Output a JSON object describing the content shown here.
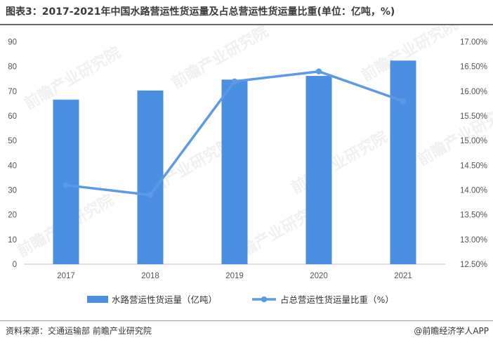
{
  "header": {
    "title": "图表3：2017-2021年中国水路营运性货运量及占总营运性货运量比重(单位：亿吨，%)"
  },
  "footer": {
    "source": "资料来源：交通运输部 前瞻产业研究院",
    "brand": "@前瞻经济学人APP"
  },
  "watermark": {
    "text": "前瞻产业研究院"
  },
  "colors": {
    "bar": "#4a8fe2",
    "line": "#5b9ae6",
    "axis": "#bfbfbf"
  },
  "chart_data": {
    "type": "bar",
    "categories": [
      "2017",
      "2018",
      "2019",
      "2020",
      "2021"
    ],
    "series": [
      {
        "name": "水路营运性货运量（亿吨）",
        "type": "bar",
        "axis": "left",
        "values": [
          66.6,
          70.3,
          74.7,
          76.2,
          82.4
        ]
      },
      {
        "name": "占总营运性货运量比重（%）",
        "type": "line",
        "axis": "right",
        "values": [
          14.1,
          13.9,
          16.2,
          16.4,
          15.8
        ]
      }
    ],
    "ylim": [
      0,
      90
    ],
    "y_ticks": [
      "0",
      "10",
      "20",
      "30",
      "40",
      "50",
      "60",
      "70",
      "80",
      "90"
    ],
    "y2lim": [
      12.5,
      17.0
    ],
    "y2_ticks": [
      "12.50%",
      "13.00%",
      "13.50%",
      "14.00%",
      "14.50%",
      "15.00%",
      "15.50%",
      "16.00%",
      "16.50%",
      "17.00%"
    ],
    "legend_position": "bottom",
    "grid": false
  }
}
